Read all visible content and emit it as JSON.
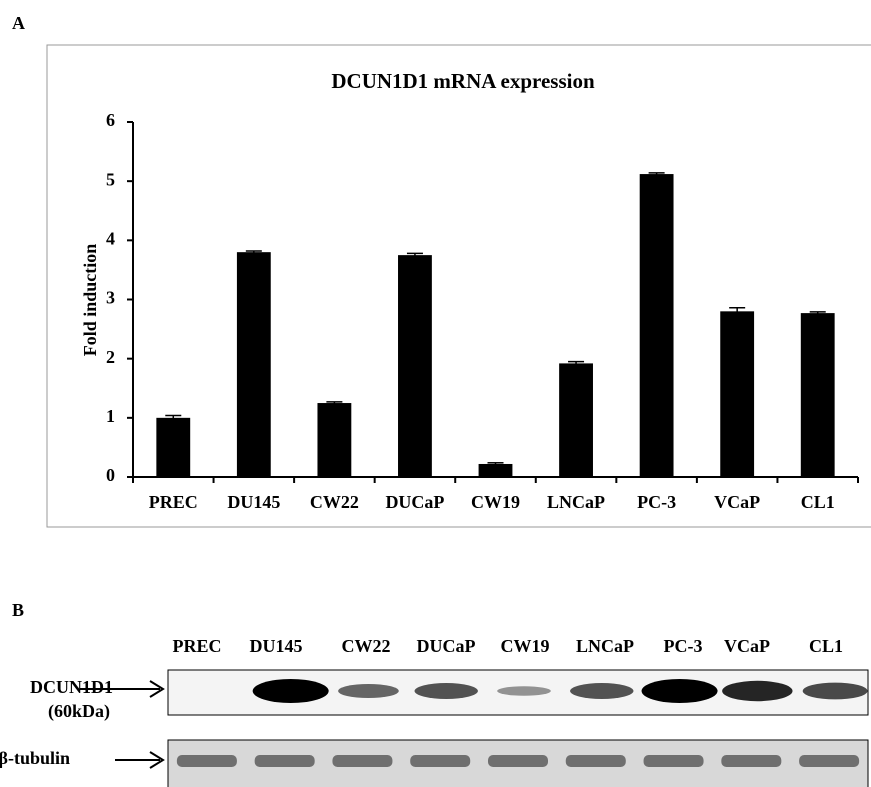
{
  "panel_labels": [
    "A",
    "B"
  ],
  "chart_data": {
    "type": "bar",
    "title": "DCUN1D1 mRNA expression",
    "y_label": "Fold induction",
    "categories": [
      "PREC",
      "DU145",
      "CW22",
      "DUCaP",
      "CW19",
      "LNCaP",
      "PC-3",
      "VCaP",
      "CL1"
    ],
    "values": [
      1.0,
      3.8,
      1.25,
      3.75,
      0.22,
      1.92,
      5.12,
      2.8,
      2.77
    ],
    "errors": [
      0.04,
      0.02,
      0.02,
      0.03,
      0.02,
      0.03,
      0.02,
      0.06,
      0.02
    ],
    "color": "#000000",
    "ylim": [
      0,
      6
    ],
    "yticks": [
      0,
      1,
      2,
      3,
      4,
      5,
      6
    ],
    "grid": false
  },
  "blot": {
    "lanes": [
      "PREC",
      "DU145",
      "CW22",
      "DUCaP",
      "CW19",
      "LNCaP",
      "PC-3",
      "VCaP",
      "CL1"
    ],
    "rows": [
      {
        "label": "DCUN1D1",
        "sublabel": "(60kDa)"
      },
      {
        "label": "β-tubulin"
      }
    ]
  }
}
